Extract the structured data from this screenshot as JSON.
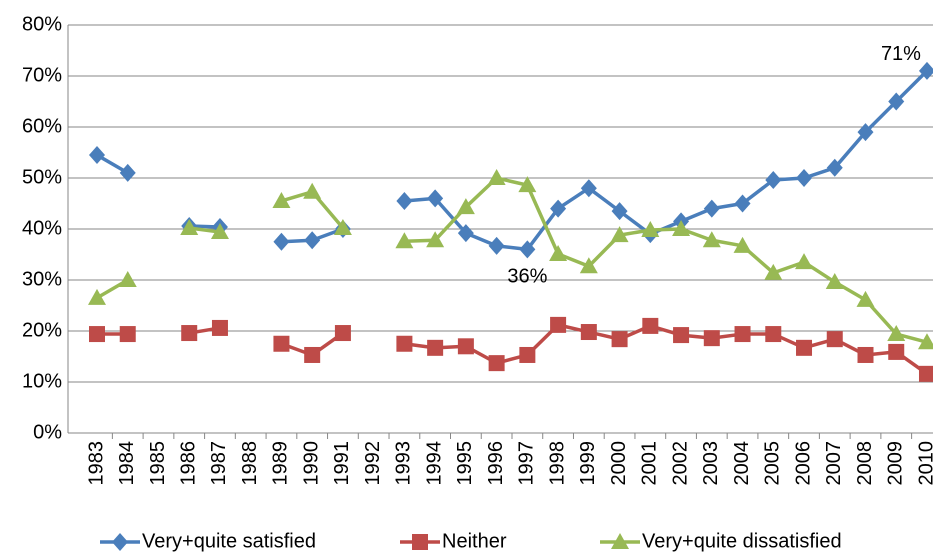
{
  "chart_data": {
    "type": "line",
    "categories": [
      "1983",
      "1984",
      "1985",
      "1986",
      "1987",
      "1988",
      "1989",
      "1990",
      "1991",
      "1992",
      "1993",
      "1994",
      "1995",
      "1996",
      "1997",
      "1998",
      "1999",
      "2000",
      "2001",
      "2002",
      "2003",
      "2004",
      "2005",
      "2006",
      "2007",
      "2008",
      "2009",
      "2010"
    ],
    "series": [
      {
        "name": "Very+quite satisfied",
        "color": "#4a7ebb",
        "marker": "diamond",
        "values": [
          54.5,
          51,
          null,
          40.6,
          40.4,
          null,
          37.5,
          37.8,
          40,
          null,
          45.5,
          46,
          39.2,
          36.7,
          36,
          44,
          48,
          43.5,
          39,
          41.5,
          44,
          45,
          49.6,
          50,
          52,
          59,
          65,
          71
        ]
      },
      {
        "name": "Neither",
        "color": "#be4b48",
        "marker": "square",
        "values": [
          19.4,
          19.4,
          null,
          19.6,
          20.6,
          null,
          17.5,
          15.3,
          19.6,
          null,
          17.5,
          16.7,
          17,
          13.7,
          15.3,
          21.2,
          19.8,
          18.4,
          21,
          19.2,
          18.6,
          19.4,
          19.4,
          16.7,
          18.4,
          15.3,
          15.9,
          11.6
        ]
      },
      {
        "name": "Very+quite dissatisfied",
        "color": "#98b954",
        "marker": "triangle",
        "values": [
          26.5,
          30,
          null,
          40.2,
          39.4,
          null,
          45.5,
          47.3,
          40.2,
          null,
          37.6,
          37.8,
          44.3,
          50,
          48.6,
          35.1,
          32.7,
          38.8,
          39.8,
          40,
          37.8,
          36.7,
          31.4,
          33.5,
          29.6,
          26.1,
          19.4,
          17.8
        ]
      }
    ],
    "annotations": [
      {
        "text": "71%",
        "x": "2010",
        "y": 71,
        "position": "above-left"
      },
      {
        "text": "36%",
        "x": "1997",
        "y": 36,
        "position": "below"
      }
    ],
    "ylim": [
      0,
      80
    ],
    "yticks": [
      {
        "value": 0,
        "label": "0%"
      },
      {
        "value": 10,
        "label": "10%"
      },
      {
        "value": 20,
        "label": "20%"
      },
      {
        "value": 30,
        "label": "30%"
      },
      {
        "value": 40,
        "label": "40%"
      },
      {
        "value": 50,
        "label": "50%"
      },
      {
        "value": 60,
        "label": "60%"
      },
      {
        "value": 70,
        "label": "70%"
      },
      {
        "value": 80,
        "label": "80%"
      }
    ],
    "grid": true,
    "legend": "bottom"
  }
}
